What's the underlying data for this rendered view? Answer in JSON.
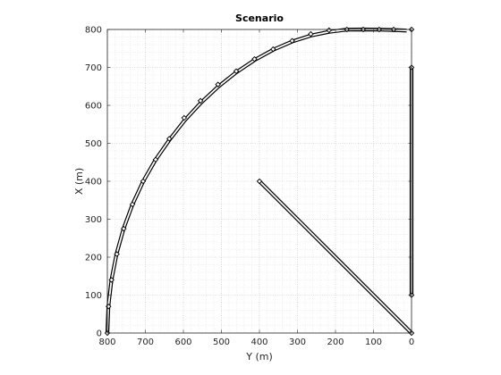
{
  "chart_data": {
    "type": "line",
    "title": "Scenario",
    "xlabel": "Y (m)",
    "ylabel": "X (m)",
    "xlim": [
      800,
      0
    ],
    "ylim": [
      0,
      800
    ],
    "x_reversed": true,
    "x_ticks": [
      800,
      700,
      600,
      500,
      400,
      300,
      200,
      100,
      0
    ],
    "y_ticks": [
      0,
      100,
      200,
      300,
      400,
      500,
      600,
      700,
      800
    ],
    "x_tick_labels": [
      "800",
      "700",
      "600",
      "500",
      "400",
      "300",
      "200",
      "100",
      "0"
    ],
    "y_tick_labels": [
      "0",
      "100",
      "200",
      "300",
      "400",
      "500",
      "600",
      "700",
      "800"
    ],
    "grid": "major and minor dotted",
    "line_color": "#000000",
    "marker": "diamond",
    "series": [
      {
        "kind": "arc",
        "x": [
          800,
          797.3,
          789.1,
          775.7,
          757.2,
          733.7,
          705.6,
          673.2,
          636.9,
          597.2,
          554.4,
          509.1,
          461.8,
          413.2,
          363.8,
          314.2,
          265.0,
          216.9,
          170.4,
          126.2,
          84.8,
          46.8,
          12.9
        ],
        "y": [
          0,
          70.6,
          140.5,
          209.1,
          275.5,
          339.4,
          400.0,
          456.6,
          508.8,
          559.9,
          606.3,
          648.7,
          686.5,
          719.2,
          746.5,
          768.1,
          783.9,
          793.7,
          799.5,
          800.0,
          799.5,
          798.6,
          797.0
        ],
        "markers_x": [
          800,
          797,
          789,
          775,
          757,
          734,
          706,
          673,
          637,
          598,
          555,
          509,
          461,
          413,
          364,
          314,
          265,
          217,
          170,
          127,
          85,
          47,
          0
        ],
        "markers_y": [
          0,
          70,
          140,
          208,
          275,
          339,
          400,
          457,
          512,
          567,
          612,
          655,
          690,
          722,
          748,
          770,
          788,
          798,
          800,
          800,
          800,
          800,
          800
        ]
      },
      {
        "kind": "straight",
        "x": [
          0,
          0
        ],
        "y": [
          100,
          700
        ],
        "markers_x": [
          0,
          0
        ],
        "markers_y": [
          100,
          700
        ]
      },
      {
        "kind": "straight",
        "x": [
          400,
          0
        ],
        "y": [
          400,
          0
        ],
        "markers_x": [
          400,
          0
        ],
        "markers_y": [
          400,
          0
        ]
      }
    ]
  }
}
